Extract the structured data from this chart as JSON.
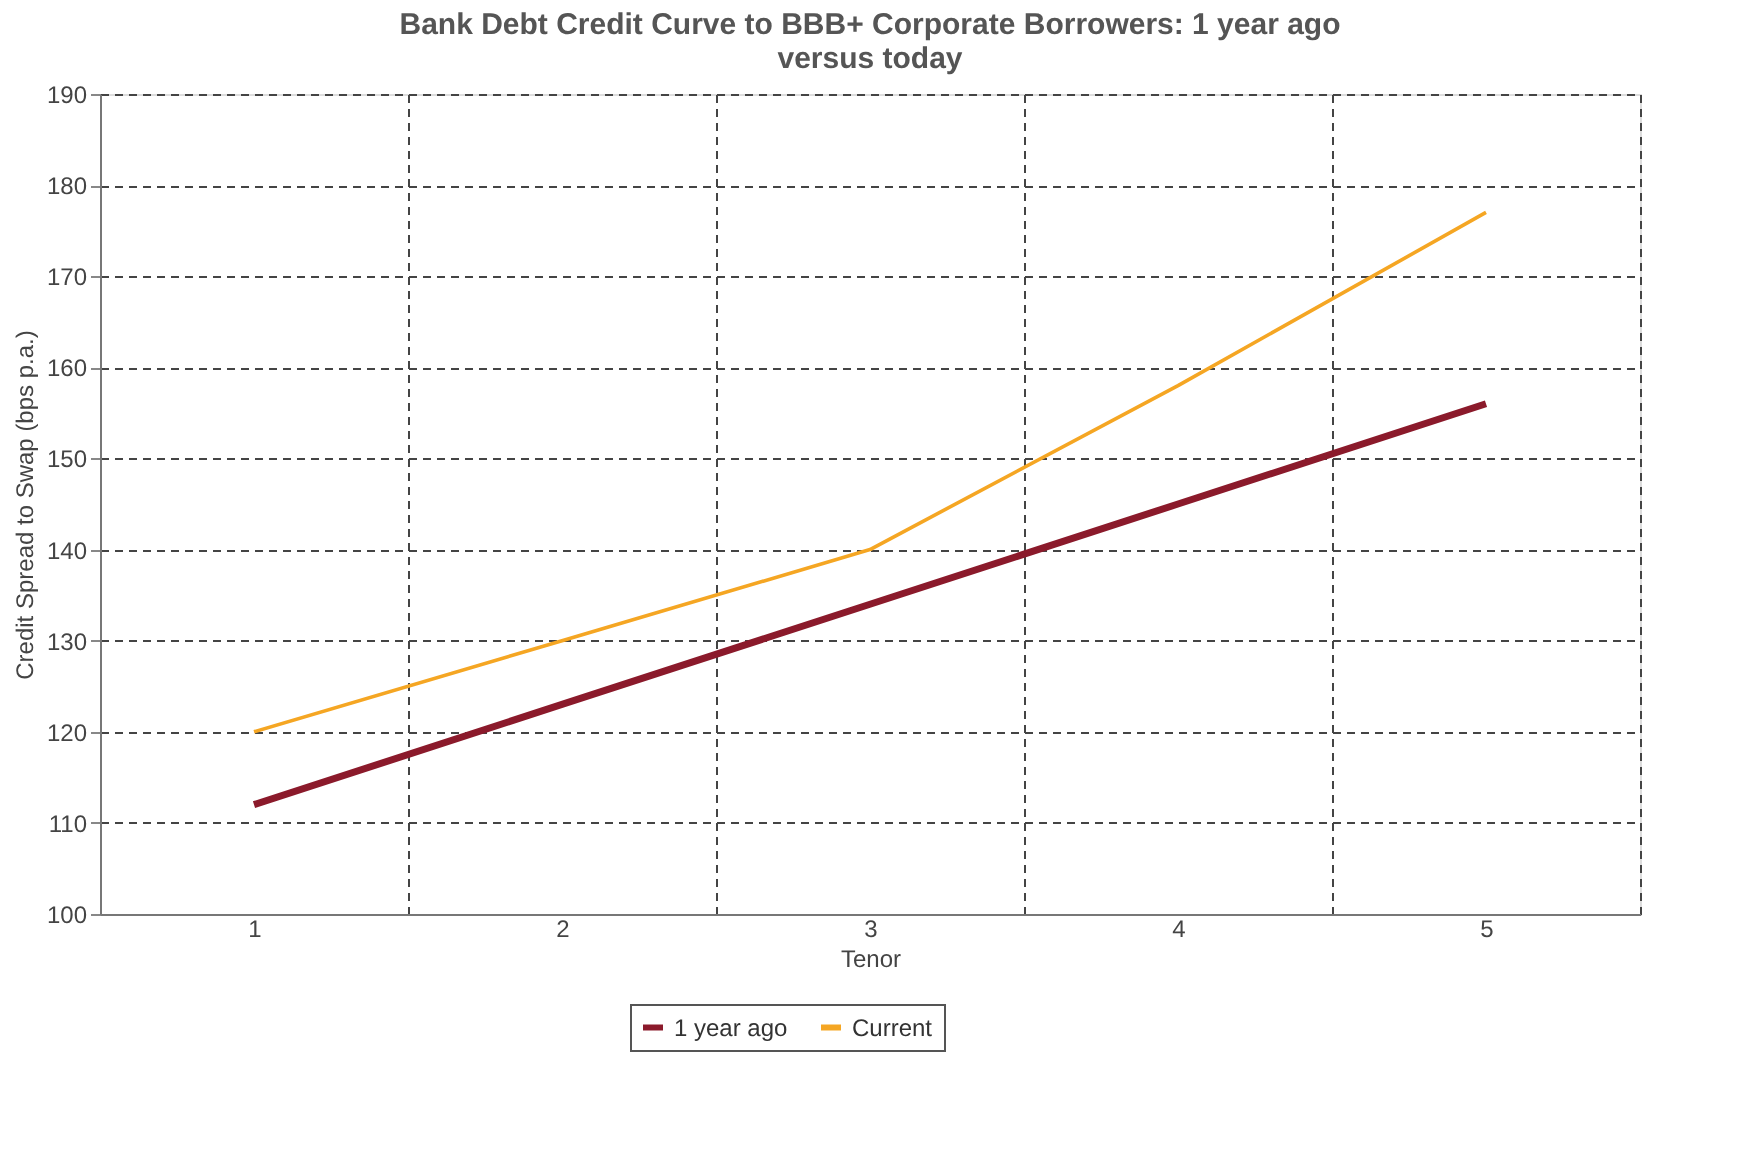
{
  "chart_data": {
    "type": "line",
    "title": [
      "Bank Debt Credit Curve to BBB+ Corporate Borrowers: 1 year ago",
      "versus today"
    ],
    "xlabel": "Tenor",
    "ylabel": "Credit Spread to Swap (bps p.a.)",
    "categories": [
      "1",
      "2",
      "3",
      "4",
      "5"
    ],
    "series": [
      {
        "name": "1 year ago",
        "color": "#8b1a2b",
        "values": [
          112,
          123,
          134,
          145,
          156
        ]
      },
      {
        "name": "Current",
        "color": "#f5a623",
        "values": [
          120,
          130,
          140,
          158,
          177
        ]
      }
    ],
    "ylim": [
      100,
      190
    ],
    "yticks": [
      100,
      110,
      120,
      130,
      140,
      150,
      160,
      170,
      180,
      190
    ],
    "grid": true,
    "legend": "bottom",
    "line_style": "solid",
    "marker": "none"
  }
}
